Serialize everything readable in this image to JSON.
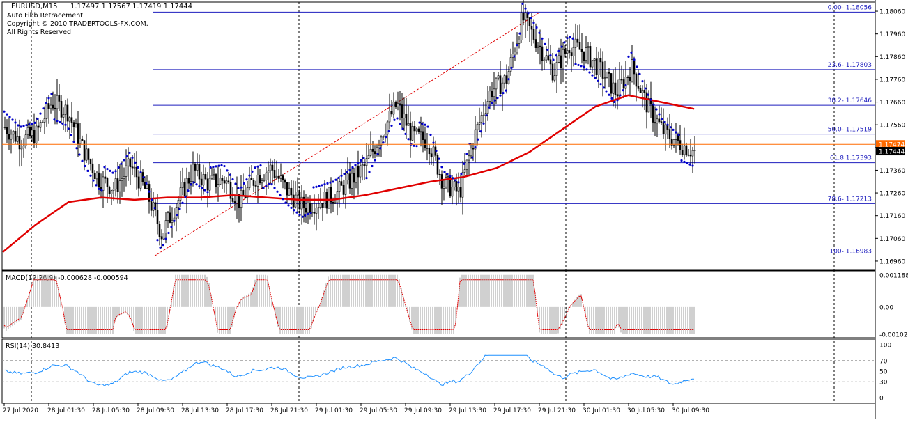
{
  "chart_data": {
    "type": "line",
    "symbol": "EURUSD,M15",
    "ohlc": "1.17497 1.17567 1.17419 1.17444",
    "header_lines": [
      "Auto Fibb Retracement",
      "Copyright © 2010 TRADERTOOLS-FX.COM.",
      "All Rights Reserved."
    ],
    "price_ticks": [
      "1.18060",
      "1.17960",
      "1.17860",
      "1.17760",
      "1.17660",
      "1.17560",
      "1.17460",
      "1.17360",
      "1.17260",
      "1.17160",
      "1.17060",
      "1.16960"
    ],
    "price_ylim": [
      1.1692,
      1.181
    ],
    "fib_levels": [
      {
        "label": "0.00- 1.18056",
        "price": 1.18056
      },
      {
        "label": "23.6- 1.17803",
        "price": 1.17803
      },
      {
        "label": "38.2- 1.17646",
        "price": 1.17646
      },
      {
        "label": "50.0- 1.17519",
        "price": 1.17519
      },
      {
        "label": "61.8 1.17393",
        "price": 1.17393
      },
      {
        "label": "78.6- 1.17213",
        "price": 1.17213
      },
      {
        "label": "100- 1.16983",
        "price": 1.16983
      }
    ],
    "price_badges": [
      {
        "label": "1.17474",
        "price": 1.17474,
        "color": "#ff6a00"
      },
      {
        "label": "1.17444",
        "price": 1.17444,
        "color": "#000000"
      }
    ],
    "time_labels": [
      "27 Jul 2020",
      "28 Jul 01:30",
      "28 Jul 05:30",
      "28 Jul 09:30",
      "28 Jul 13:30",
      "28 Jul 17:30",
      "28 Jul 21:30",
      "29 Jul 01:30",
      "29 Jul 05:30",
      "29 Jul 09:30",
      "29 Jul 13:30",
      "29 Jul 17:30",
      "29 Jul 21:30",
      "30 Jul 01:30",
      "30 Jul 05:30",
      "30 Jul 09:30"
    ],
    "close_path": [
      1.1755,
      1.1749,
      1.1752,
      1.1766,
      1.1762,
      1.1745,
      1.1732,
      1.1728,
      1.1738,
      1.1727,
      1.1708,
      1.1722,
      1.1736,
      1.173,
      1.1732,
      1.1722,
      1.1733,
      1.1737,
      1.1727,
      1.172,
      1.1722,
      1.1725,
      1.1731,
      1.1738,
      1.1752,
      1.1765,
      1.1751,
      1.1749,
      1.173,
      1.1726,
      1.1752,
      1.1771,
      1.1776,
      1.1803,
      1.1792,
      1.1779,
      1.1791,
      1.1788,
      1.178,
      1.177,
      1.1781,
      1.1764,
      1.1753,
      1.1748,
      1.1744
    ],
    "ma_path": [
      1.17,
      1.1712,
      1.1722,
      1.1724,
      1.1723,
      1.1724,
      1.1724,
      1.1725,
      1.1724,
      1.1723,
      1.1723,
      1.1725,
      1.1728,
      1.1731,
      1.1733,
      1.1737,
      1.1744,
      1.1754,
      1.1764,
      1.1769,
      1.1766,
      1.1763
    ],
    "macd": {
      "title": "MACD(12,26,9) -0.000628 -0.000594",
      "ticks": [
        "0.001188",
        "0.00",
        "-0.001021"
      ],
      "ylim": [
        -0.00115,
        0.00135
      ]
    },
    "rsi": {
      "title": "RSI(14) 30.8413",
      "ticks": [
        "100",
        "70",
        "50",
        "30",
        "0"
      ],
      "levels": [
        70,
        30
      ],
      "ylim": [
        0,
        100
      ]
    },
    "colors": {
      "fib": "#1e1ebe",
      "ma": "#e00000",
      "sar": "#0000cc",
      "candle": "#000000",
      "grid": "#000000",
      "rsi": "#1e90ff",
      "macd_hist": "#a0a0a0",
      "macd_signal": "#e00000"
    }
  }
}
